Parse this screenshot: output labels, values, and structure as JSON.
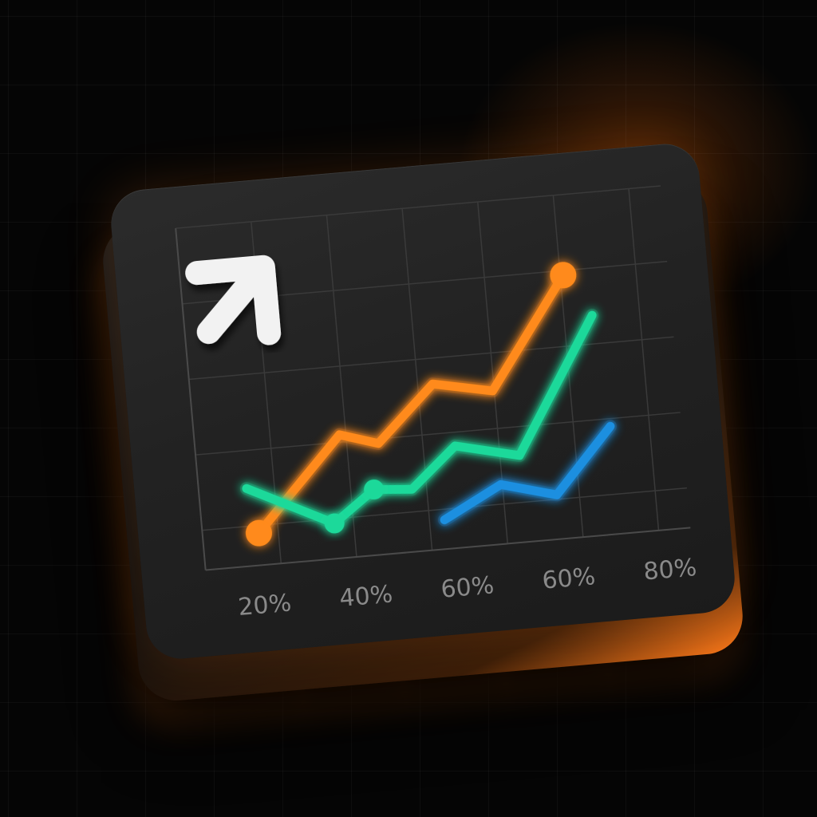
{
  "colors": {
    "background": "#050505",
    "tile": "#222222",
    "accent_glow": "#ff7a1a",
    "grid": "#3a3a3a",
    "tick_label": "#8a8a8a",
    "arrow": "#f2f2f2"
  },
  "icon": "trend-up-arrow-icon",
  "chart_data": {
    "type": "line",
    "title": "",
    "xlabel": "",
    "ylabel": "",
    "x_tick_labels": [
      "20%",
      "40%",
      "60%",
      "60%",
      "80%"
    ],
    "xlim": [
      0,
      10
    ],
    "ylim": [
      0,
      10
    ],
    "grid": true,
    "legend": "none",
    "series": [
      {
        "color": "#ff8a1a",
        "points": [
          [
            0.2,
            0.8
          ],
          [
            2.3,
            3.8
          ],
          [
            3.2,
            3.4
          ],
          [
            4.6,
            5.2
          ],
          [
            6.0,
            4.8
          ],
          [
            7.9,
            8.4
          ]
        ],
        "markers": [
          0,
          5
        ]
      },
      {
        "color": "#1fd99a",
        "points": [
          [
            0.0,
            2.3
          ],
          [
            2.0,
            0.9
          ],
          [
            3.0,
            1.9
          ],
          [
            3.9,
            1.8
          ],
          [
            5.0,
            3.1
          ],
          [
            6.5,
            2.6
          ],
          [
            8.5,
            7.0
          ]
        ],
        "markers": [
          1,
          2
        ]
      },
      {
        "color": "#1e8fe0",
        "points": [
          [
            4.6,
            0.7
          ],
          [
            6.0,
            1.7
          ],
          [
            7.3,
            1.2
          ],
          [
            8.7,
            3.3
          ]
        ],
        "markers": []
      }
    ]
  }
}
